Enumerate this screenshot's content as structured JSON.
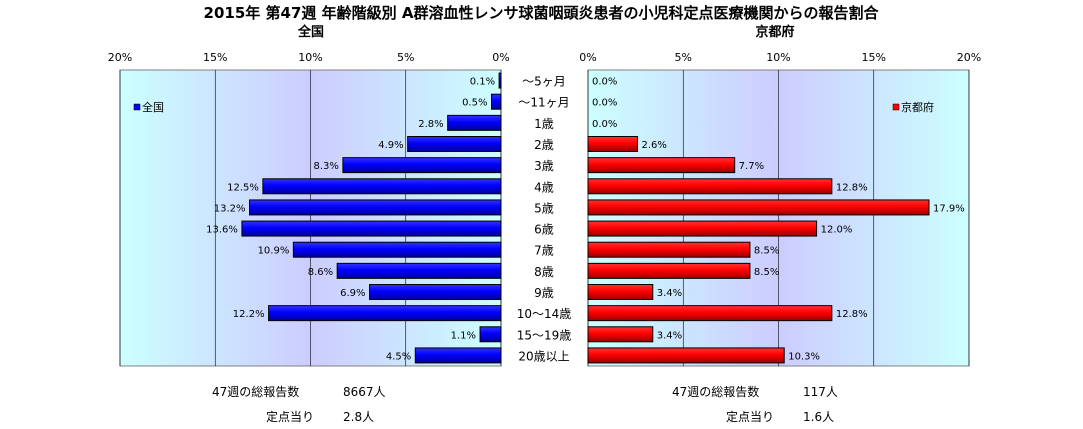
{
  "title": "2015年 第47週 年齢階級別 A群溶血性レンサ球菌咽頭炎患者の小児科定点医療機関からの報告割合",
  "panels": {
    "left": {
      "subtitle": "全国",
      "legend": "全国",
      "bar_color": "#0000ff",
      "total_label": "47週の総報告数",
      "total_value": "8667人",
      "per_site_label": "定点当り",
      "per_site_value": "2.8人"
    },
    "right": {
      "subtitle": "京都府",
      "legend": "京都府",
      "bar_color": "#ff0000",
      "total_label": "47週の総報告数",
      "total_value": "117人",
      "per_site_label": "定点当り",
      "per_site_value": "1.6人"
    }
  },
  "chart_data": {
    "type": "bar",
    "orientation": "horizontal-butterfly",
    "title": "2015年 第47週 年齢階級別 A群溶血性レンサ球菌咽頭炎患者の小児科定点医療機関からの報告割合",
    "categories": [
      "～5ヶ月",
      "～11ヶ月",
      "1歳",
      "2歳",
      "3歳",
      "4歳",
      "5歳",
      "6歳",
      "7歳",
      "8歳",
      "9歳",
      "10～14歳",
      "15～19歳",
      "20歳以上"
    ],
    "series": [
      {
        "name": "全国",
        "values": [
          0.1,
          0.5,
          2.8,
          4.9,
          8.3,
          12.5,
          13.2,
          13.6,
          10.9,
          8.6,
          6.9,
          12.2,
          1.1,
          4.5
        ]
      },
      {
        "name": "京都府",
        "values": [
          0.0,
          0.0,
          0.0,
          2.6,
          7.7,
          12.8,
          17.9,
          12.0,
          8.5,
          8.5,
          3.4,
          12.8,
          3.4,
          10.3
        ]
      }
    ],
    "value_labels": {
      "全国": [
        "0.1%",
        "0.5%",
        "2.8%",
        "4.9%",
        "8.3%",
        "12.5%",
        "13.2%",
        "13.6%",
        "10.9%",
        "8.6%",
        "6.9%",
        "12.2%",
        "1.1%",
        "4.5%"
      ],
      "京都府": [
        "0.0%",
        "0.0%",
        "0.0%",
        "2.6%",
        "7.7%",
        "12.8%",
        "17.9%",
        "12.0%",
        "8.5%",
        "8.5%",
        "3.4%",
        "12.8%",
        "3.4%",
        "10.3%"
      ]
    },
    "xlim": [
      0,
      20
    ],
    "x_ticks": [
      0,
      5,
      10,
      15,
      20
    ],
    "x_tick_labels": [
      "0%",
      "5%",
      "10%",
      "15%",
      "20%"
    ],
    "left_axis_reversed": true,
    "grid": true,
    "legend_position": "left panel: upper-left; right panel: upper-right",
    "colors": {
      "全国": "#0000ff",
      "京都府": "#ff0000",
      "plot_bg_edge": "#ccffff",
      "plot_bg_center": "#ccccff"
    }
  }
}
